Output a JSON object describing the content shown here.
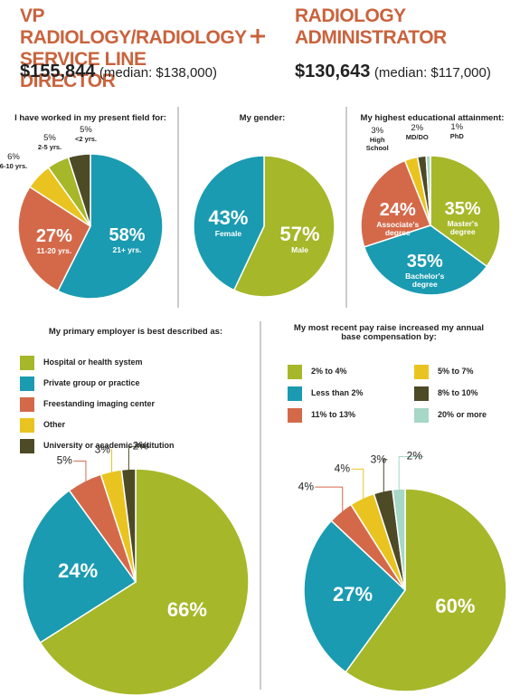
{
  "header": {
    "left": {
      "title": "VP RADIOLOGY/RADIOLOGY SERVICE LINE DIRECTOR",
      "salary": "$155,844",
      "median": "(median: $138,000)"
    },
    "right": {
      "title": "RADIOLOGY ADMINISTRATOR",
      "salary": "$130,643",
      "median": "(median: $117,000)"
    }
  },
  "chart_data": [
    {
      "type": "pie",
      "title": "I have worked in my present field for:",
      "categories": [
        "21+ yrs.",
        "11-20 yrs.",
        "6-10 yrs.",
        "2-5 yrs.",
        "<2 yrs."
      ],
      "values": [
        58,
        27,
        6,
        5,
        5
      ],
      "value_labels": [
        "58%",
        "27%",
        "6%",
        "5%",
        "5%"
      ],
      "colors": [
        "#1a9bb1",
        "#d4694a",
        "#e9c420",
        "#a6b729",
        "#4d4a26"
      ]
    },
    {
      "type": "pie",
      "title": "My gender:",
      "categories": [
        "Male",
        "Female"
      ],
      "values": [
        57,
        43
      ],
      "value_labels": [
        "57%",
        "43%"
      ],
      "colors": [
        "#a6b729",
        "#1a9bb1"
      ]
    },
    {
      "type": "pie",
      "title": "My highest educational attainment:",
      "categories": [
        "Master's degree",
        "Bachelor's degree",
        "Associate's degree",
        "High School",
        "MD/DO",
        "PhD"
      ],
      "values": [
        35,
        35,
        24,
        3,
        2,
        1
      ],
      "value_labels": [
        "35%",
        "35%",
        "24%",
        "3%",
        "2%",
        "1%"
      ],
      "colors": [
        "#a6b729",
        "#1a9bb1",
        "#d4694a",
        "#e9c420",
        "#4d4a26",
        "#a7d7c6"
      ]
    },
    {
      "type": "pie",
      "title": "My primary employer is best described as:",
      "categories": [
        "Hospital or health system",
        "Private group or practice",
        "Freestanding imaging center",
        "Other",
        "University or academic institution"
      ],
      "values": [
        66,
        24,
        5,
        3,
        2
      ],
      "value_labels": [
        "66%",
        "24%",
        "5%",
        "3%",
        "2%"
      ],
      "colors": [
        "#a6b729",
        "#1a9bb1",
        "#d4694a",
        "#e9c420",
        "#4d4a26"
      ],
      "legend": "top"
    },
    {
      "type": "pie",
      "title": "My most recent pay raise increased my annual base compensation by:",
      "categories": [
        "2% to 4%",
        "Less than 2%",
        "11% to 13%",
        "5% to 7%",
        "8% to 10%",
        "20% or more"
      ],
      "values": [
        60,
        27,
        4,
        4,
        3,
        2
      ],
      "value_labels": [
        "60%",
        "27%",
        "4%",
        "4%",
        "3%",
        "2%"
      ],
      "colors": [
        "#a6b729",
        "#1a9bb1",
        "#d4694a",
        "#e9c420",
        "#4d4a26",
        "#a7d7c6"
      ],
      "legend": "top"
    }
  ]
}
